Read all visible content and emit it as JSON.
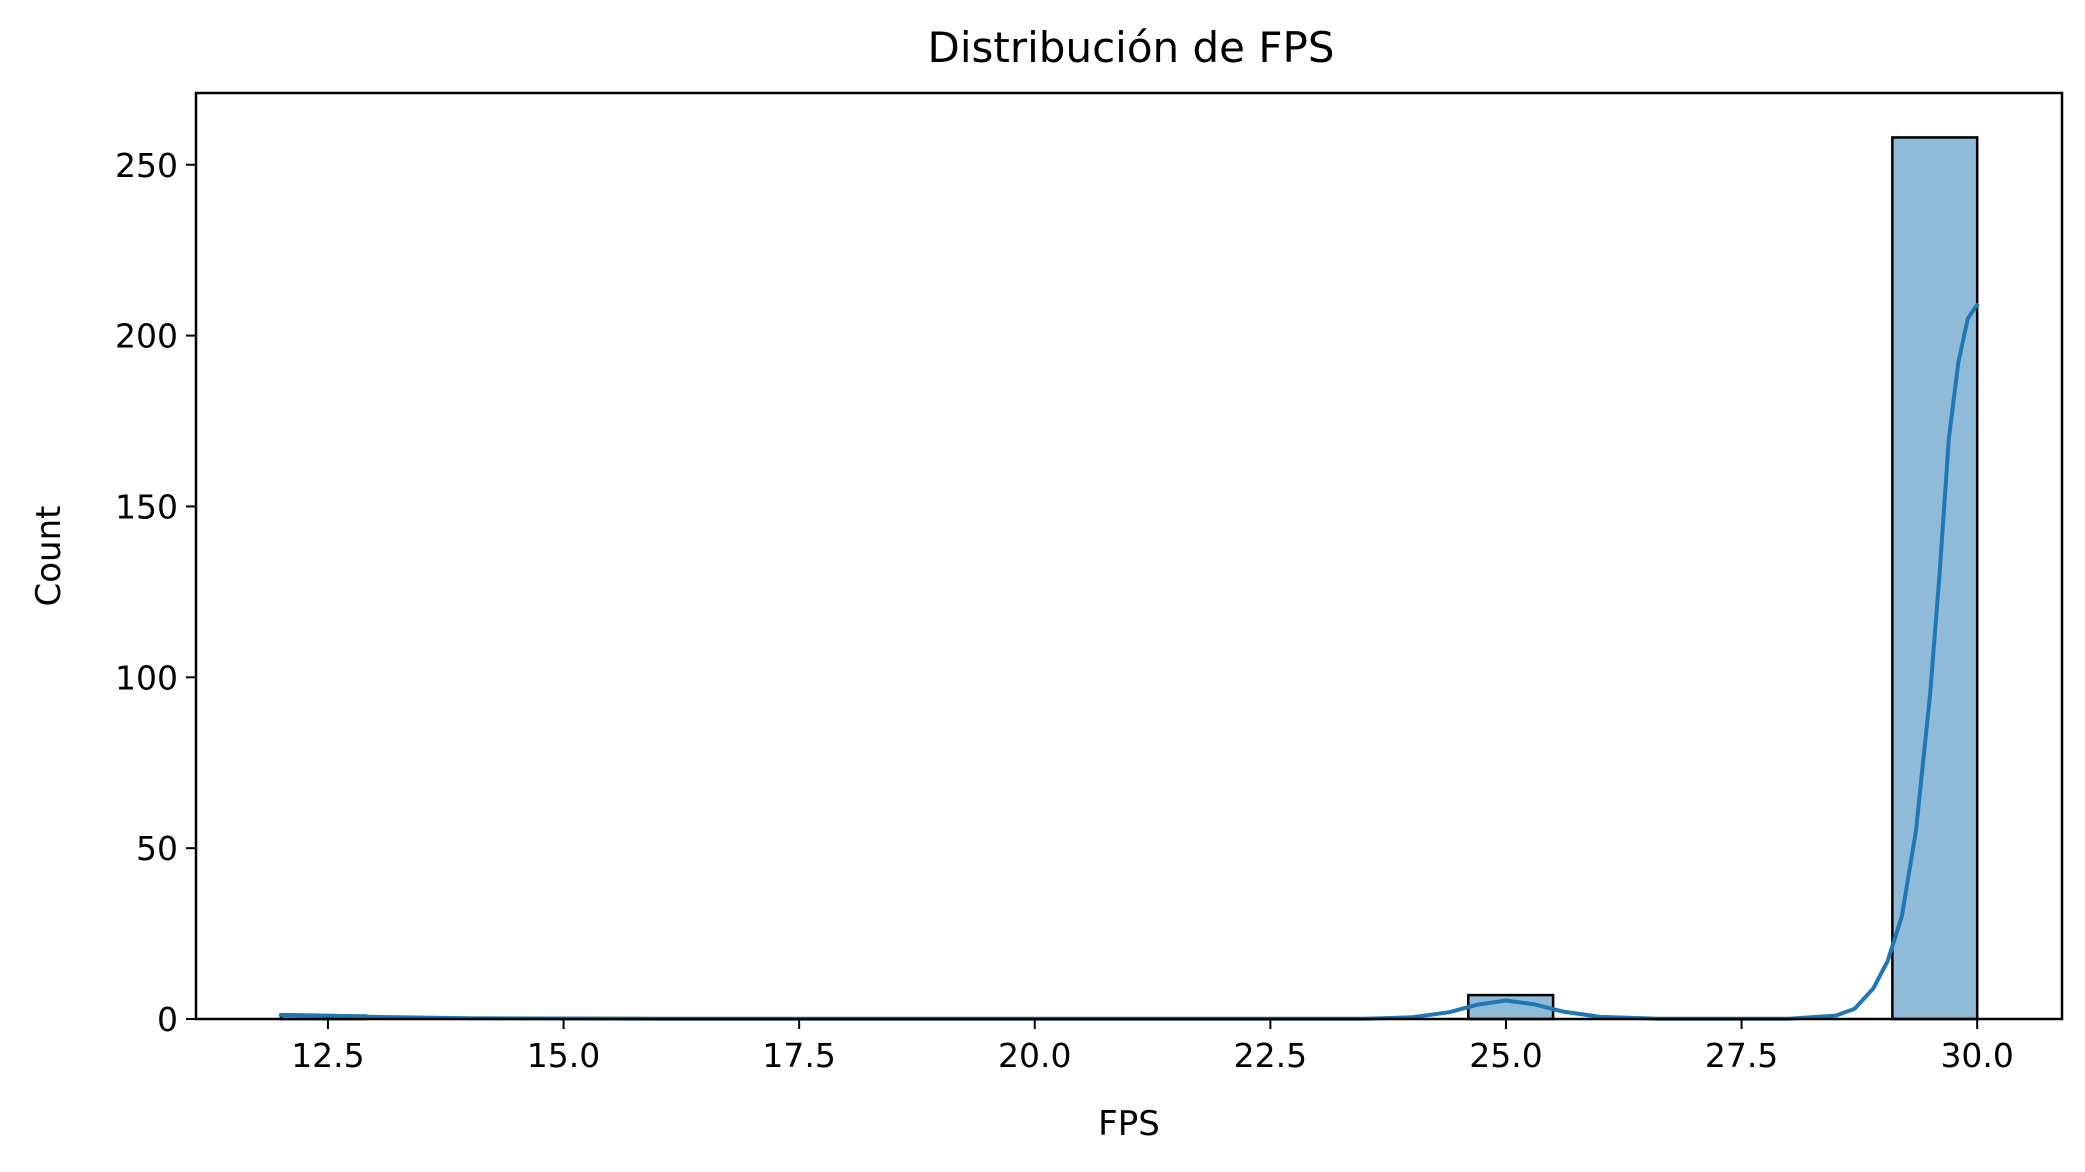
{
  "chart_data": {
    "type": "bar",
    "title": "Distribución de FPS",
    "xlabel": "FPS",
    "ylabel": "Count",
    "xlim": [
      11.1,
      30.9
    ],
    "ylim": [
      0,
      271
    ],
    "xticks": [
      "12.5",
      "15.0",
      "17.5",
      "20.0",
      "22.5",
      "25.0",
      "27.5",
      "30.0"
    ],
    "yticks": [
      "0",
      "50",
      "100",
      "150",
      "200",
      "250"
    ],
    "grid": false,
    "bar_color": "#1f77b4",
    "bar_alpha": 0.5,
    "edge_color": "#000000",
    "line_color": "#1f77b4",
    "bins": [
      {
        "x0": 12.0,
        "x1": 12.9,
        "count": 1
      },
      {
        "x0": 24.6,
        "x1": 25.5,
        "count": 7
      },
      {
        "x0": 29.1,
        "x1": 30.0,
        "count": 258
      }
    ],
    "kde": [
      [
        12.0,
        1.2
      ],
      [
        12.5,
        1.0
      ],
      [
        13.0,
        0.6
      ],
      [
        14.0,
        0.2
      ],
      [
        16.0,
        0.1
      ],
      [
        20.0,
        0.1
      ],
      [
        23.5,
        0.1
      ],
      [
        24.0,
        0.5
      ],
      [
        24.4,
        2.0
      ],
      [
        24.7,
        4.2
      ],
      [
        25.0,
        5.4
      ],
      [
        25.3,
        4.3
      ],
      [
        25.6,
        2.2
      ],
      [
        26.0,
        0.6
      ],
      [
        26.6,
        0.1
      ],
      [
        28.0,
        0.1
      ],
      [
        28.5,
        1.0
      ],
      [
        28.7,
        3.0
      ],
      [
        28.9,
        9.0
      ],
      [
        29.05,
        17.0
      ],
      [
        29.2,
        30.0
      ],
      [
        29.35,
        55.0
      ],
      [
        29.5,
        95.0
      ],
      [
        29.6,
        130.0
      ],
      [
        29.7,
        170.0
      ],
      [
        29.8,
        192.0
      ],
      [
        29.9,
        205.0
      ],
      [
        30.0,
        209.0
      ]
    ]
  }
}
